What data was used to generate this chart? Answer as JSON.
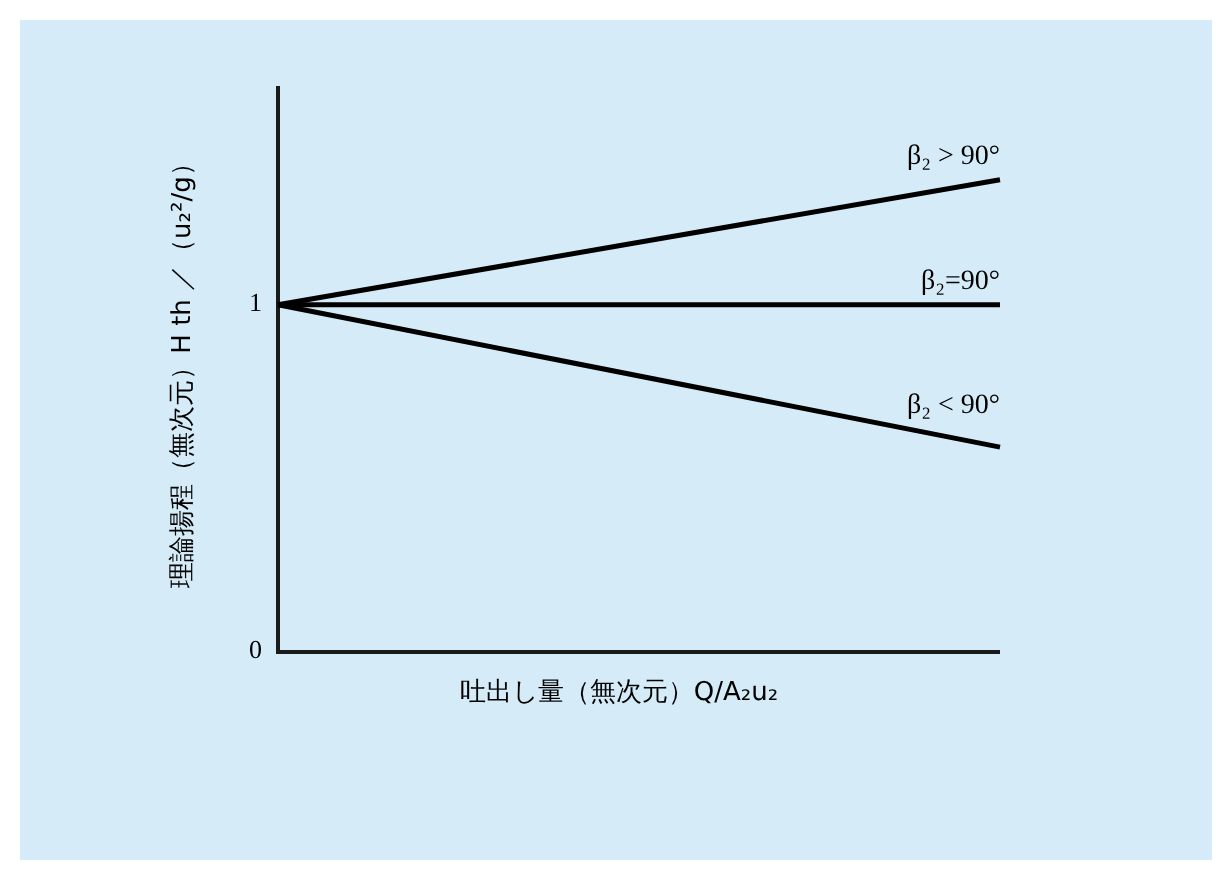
{
  "chart_data": {
    "type": "line",
    "xlabel": "吐出し量（無次元）Q/A₂u₂",
    "ylabel": "理論揚程（無次元）H th ／（u₂²/g）",
    "categories": [
      null,
      null
    ],
    "ylim": [
      0,
      1.63
    ],
    "yticks": [
      0,
      1
    ],
    "grid": false,
    "legend": false,
    "line_style": "solid",
    "marker": "none",
    "series": [
      {
        "name": "β₂ > 90°",
        "color": "#000000",
        "values": [
          1,
          1.36
        ]
      },
      {
        "name": "β₂=90°",
        "color": "#000000",
        "values": [
          1,
          1
        ]
      },
      {
        "name": "β₂ < 90°",
        "color": "#000000",
        "values": [
          1,
          0.59
        ]
      }
    ]
  }
}
